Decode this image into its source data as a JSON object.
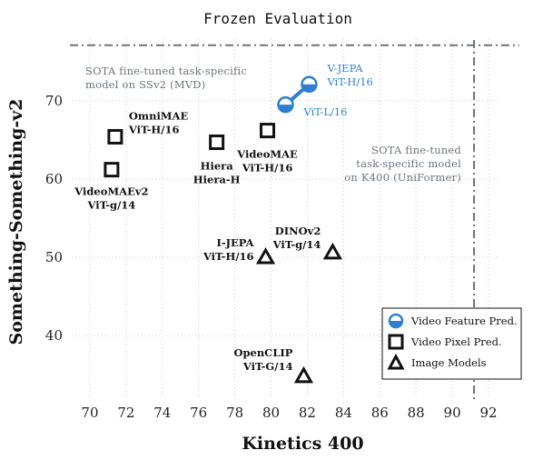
{
  "chart_data": {
    "type": "scatter",
    "title": "Frozen Evaluation",
    "xlabel": "Kinetics 400",
    "ylabel": "Something-Something-v2",
    "xlim": [
      69,
      92.5
    ],
    "ylim": [
      32,
      78
    ],
    "x_ticks": [
      "70",
      "72",
      "74",
      "76",
      "78",
      "80",
      "82",
      "84",
      "86",
      "88",
      "90",
      "92"
    ],
    "y_ticks": [
      "40",
      "50",
      "60",
      "70"
    ],
    "grid": true,
    "legend_position": "bottom-right",
    "legend": [
      {
        "label": "Video Feature Pred.",
        "marker": "half-circle",
        "color": "#2e7fd1"
      },
      {
        "label": "Video Pixel Pred.",
        "marker": "square",
        "color": "#111111"
      },
      {
        "label": "Image Models",
        "marker": "triangle",
        "color": "#111111"
      }
    ],
    "series": [
      {
        "name": "Video Feature Pred.",
        "marker": "half-circle",
        "color": "#2e7fd1",
        "connected": true,
        "points": [
          {
            "x": 80.8,
            "y": 69.5,
            "label": [
              "ViT-L/16"
            ]
          },
          {
            "x": 82.1,
            "y": 72.1,
            "label": [
              "V-JEPA",
              "ViT-H/16"
            ]
          }
        ]
      },
      {
        "name": "Video Pixel Pred.",
        "marker": "square",
        "color": "#111111",
        "points": [
          {
            "x": 71.2,
            "y": 61.2,
            "label": [
              "VideoMAEv2",
              "ViT-g/14"
            ]
          },
          {
            "x": 71.4,
            "y": 65.4,
            "label": [
              "OmniMAE",
              "ViT-H/16"
            ]
          },
          {
            "x": 77.0,
            "y": 64.7,
            "label": [
              "Hiera",
              "Hiera-H"
            ]
          },
          {
            "x": 79.8,
            "y": 66.2,
            "label": [
              "VideoMAE",
              "ViT-H/16"
            ]
          }
        ]
      },
      {
        "name": "Image Models",
        "marker": "triangle",
        "color": "#111111",
        "points": [
          {
            "x": 79.7,
            "y": 50.0,
            "label": [
              "I-JEPA",
              "ViT-H/16"
            ]
          },
          {
            "x": 83.4,
            "y": 50.6,
            "label": [
              "DINOv2",
              "ViT-g/14"
            ]
          },
          {
            "x": 81.8,
            "y": 34.8,
            "label": [
              "OpenCLIP",
              "ViT-G/14"
            ]
          }
        ]
      }
    ],
    "reference_lines": [
      {
        "orientation": "horizontal",
        "value": 77.1,
        "label": [
          "SOTA  fine-tuned  task-specific",
          "model  on  SSv2  (MVD)"
        ]
      },
      {
        "orientation": "vertical",
        "value": 91.2,
        "label": [
          "SOTA  fine-tuned",
          "task-specific  model",
          "on  K400  (UniFormer)"
        ]
      }
    ]
  }
}
